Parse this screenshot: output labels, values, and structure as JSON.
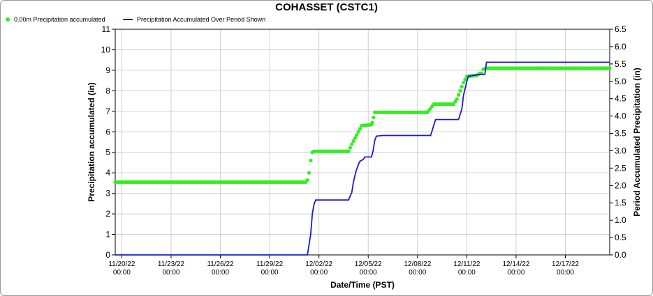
{
  "chart_data": {
    "type": "line",
    "title": "COHASSET (CSTC1)",
    "xlabel": "Date/Time (PST)",
    "ylabel": "Precipitation accumulated (in)",
    "y2label": "Period Accumulated Precipitation (in)",
    "ylim": [
      0,
      11
    ],
    "y2lim": [
      0,
      6.5
    ],
    "yticks": [
      "0",
      "1",
      "2",
      "3",
      "4",
      "5",
      "6",
      "7",
      "8",
      "9",
      "10",
      "11"
    ],
    "y2ticks": [
      "0.0",
      "0.5",
      "1.0",
      "1.5",
      "2.0",
      "2.5",
      "3.0",
      "3.5",
      "4.0",
      "4.5",
      "5.0",
      "5.5",
      "6.0",
      "6.5"
    ],
    "xlim_days": [
      -0.4,
      29.7
    ],
    "x_ticks": [
      {
        "day": 0,
        "date": "11/20/22",
        "time": "00:00"
      },
      {
        "day": 3,
        "date": "11/23/22",
        "time": "00:00"
      },
      {
        "day": 6,
        "date": "11/26/22",
        "time": "00:00"
      },
      {
        "day": 9,
        "date": "11/29/22",
        "time": "00:00"
      },
      {
        "day": 12,
        "date": "12/02/22",
        "time": "00:00"
      },
      {
        "day": 15,
        "date": "12/05/22",
        "time": "00:00"
      },
      {
        "day": 18,
        "date": "12/08/22",
        "time": "00:00"
      },
      {
        "day": 21,
        "date": "12/11/22",
        "time": "00:00"
      },
      {
        "day": 24,
        "date": "12/14/22",
        "time": "00:00"
      },
      {
        "day": 27,
        "date": "12/17/22",
        "time": "00:00"
      }
    ],
    "grid": true,
    "legend_placement": "top-left",
    "series": [
      {
        "name": "0.00m Precipitation accumulated",
        "axis": "left",
        "style": "markers",
        "color": "#33ee22",
        "points": [
          [
            -0.4,
            3.55
          ],
          [
            11.2,
            3.55
          ],
          [
            11.3,
            3.65
          ],
          [
            11.4,
            4.0
          ],
          [
            11.5,
            4.6
          ],
          [
            11.6,
            5.0
          ],
          [
            11.7,
            5.05
          ],
          [
            13.8,
            5.05
          ],
          [
            14.0,
            5.4
          ],
          [
            14.2,
            5.7
          ],
          [
            14.4,
            6.0
          ],
          [
            14.6,
            6.3
          ],
          [
            15.2,
            6.35
          ],
          [
            15.25,
            6.45
          ],
          [
            15.4,
            6.95
          ],
          [
            18.6,
            6.95
          ],
          [
            18.8,
            7.15
          ],
          [
            19.0,
            7.35
          ],
          [
            20.2,
            7.35
          ],
          [
            20.4,
            7.6
          ],
          [
            20.6,
            8.0
          ],
          [
            20.8,
            8.4
          ],
          [
            21.0,
            8.7
          ],
          [
            21.6,
            8.75
          ],
          [
            21.8,
            8.85
          ],
          [
            21.9,
            8.85
          ],
          [
            22.0,
            9.05
          ],
          [
            22.2,
            9.1
          ],
          [
            29.7,
            9.1
          ]
        ]
      },
      {
        "name": "Precipitation Accumulated Over Period Shown",
        "axis": "right",
        "style": "line",
        "color": "#1a1ad0",
        "points": [
          [
            -0.4,
            0.0
          ],
          [
            11.3,
            0.0
          ],
          [
            11.5,
            0.6
          ],
          [
            11.6,
            1.2
          ],
          [
            11.7,
            1.45
          ],
          [
            11.8,
            1.58
          ],
          [
            13.8,
            1.58
          ],
          [
            14.0,
            1.8
          ],
          [
            14.1,
            2.1
          ],
          [
            14.25,
            2.4
          ],
          [
            14.4,
            2.6
          ],
          [
            14.5,
            2.7
          ],
          [
            14.7,
            2.75
          ],
          [
            14.8,
            2.82
          ],
          [
            15.2,
            2.82
          ],
          [
            15.3,
            3.0
          ],
          [
            15.4,
            3.3
          ],
          [
            15.5,
            3.42
          ],
          [
            15.9,
            3.44
          ],
          [
            18.8,
            3.44
          ],
          [
            19.1,
            3.9
          ],
          [
            20.5,
            3.9
          ],
          [
            20.7,
            4.2
          ],
          [
            20.8,
            4.6
          ],
          [
            21.0,
            5.0
          ],
          [
            21.1,
            5.15
          ],
          [
            21.5,
            5.18
          ],
          [
            21.8,
            5.2
          ],
          [
            22.1,
            5.2
          ],
          [
            22.2,
            5.55
          ],
          [
            29.7,
            5.55
          ]
        ]
      }
    ]
  }
}
